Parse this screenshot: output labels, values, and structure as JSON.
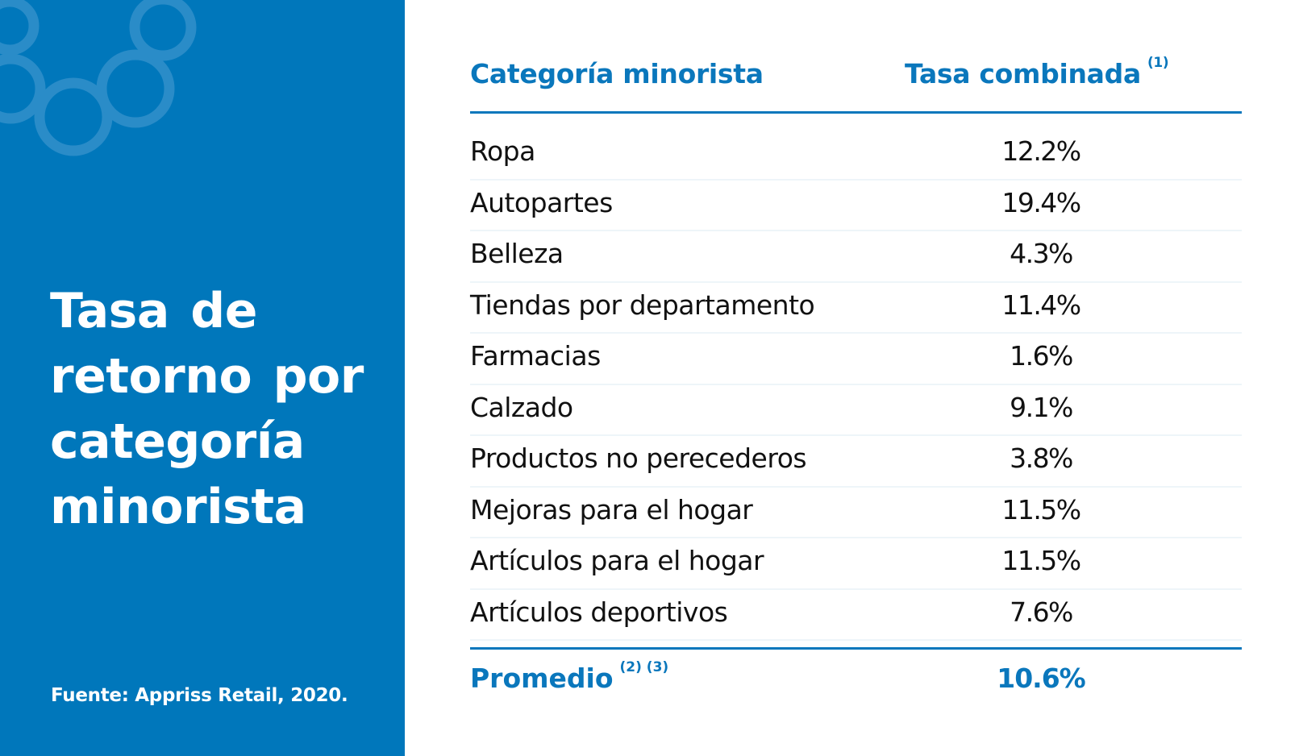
{
  "panel": {
    "title": "Tasa de retorno por categoría minorista",
    "source": "Fuente: Appriss Retail, 2020.",
    "color": "#0077BB"
  },
  "table": {
    "headers": {
      "category": "Categoría minorista",
      "rate": "Tasa combinada",
      "rate_note": "(1)"
    },
    "rows": [
      {
        "category": "Ropa",
        "rate": "12.2%"
      },
      {
        "category": "Autopartes",
        "rate": "19.4%"
      },
      {
        "category": "Belleza",
        "rate": "4.3%"
      },
      {
        "category": "Tiendas por departamento",
        "rate": "11.4%"
      },
      {
        "category": "Farmacias",
        "rate": "1.6%"
      },
      {
        "category": "Calzado",
        "rate": "9.1%"
      },
      {
        "category": "Productos no perecederos",
        "rate": "3.8%"
      },
      {
        "category": "Mejoras para el hogar",
        "rate": "11.5%"
      },
      {
        "category": "Artículos para el hogar",
        "rate": "11.5%"
      },
      {
        "category": "Artículos deportivos",
        "rate": "7.6%"
      }
    ],
    "average": {
      "label": "Promedio",
      "notes": "(2) (3)",
      "rate": "10.6%"
    },
    "accent": "#0A77BC"
  }
}
